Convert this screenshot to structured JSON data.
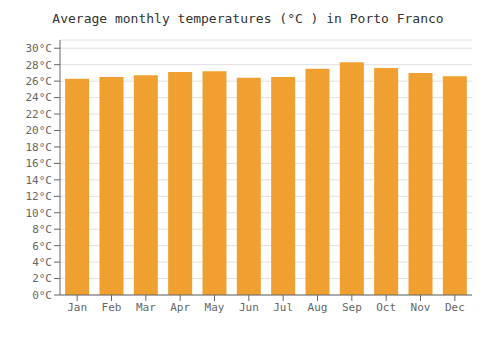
{
  "chart_data": {
    "type": "bar",
    "title": "Average monthly temperatures (°C ) in Porto Franco",
    "categories": [
      "Jan",
      "Feb",
      "Mar",
      "Apr",
      "May",
      "Jun",
      "Jul",
      "Aug",
      "Sep",
      "Oct",
      "Nov",
      "Dec"
    ],
    "values": [
      26.3,
      26.5,
      26.7,
      27.1,
      27.2,
      26.4,
      26.5,
      27.5,
      28.3,
      27.6,
      27.0,
      26.6
    ],
    "color": "#F0A030",
    "ylim": [
      0,
      31
    ],
    "yticks": [
      {
        "value": 0,
        "label": "0°C"
      },
      {
        "value": 2,
        "label": "2°C"
      },
      {
        "value": 4,
        "label": "4°C"
      },
      {
        "value": 6,
        "label": "6°C"
      },
      {
        "value": 8,
        "label": "8°C"
      },
      {
        "value": 10,
        "label": "10°C"
      },
      {
        "value": 12,
        "label": "12°C"
      },
      {
        "value": 14,
        "label": "14°C"
      },
      {
        "value": 16,
        "label": "16°C"
      },
      {
        "value": 18,
        "label": "18°C"
      },
      {
        "value": 20,
        "label": "20°C"
      },
      {
        "value": 22,
        "label": "22°C"
      },
      {
        "value": 24,
        "label": "24°C"
      },
      {
        "value": 26,
        "label": "26°C"
      },
      {
        "value": 28,
        "label": "28°C"
      },
      {
        "value": 30,
        "label": "30°C"
      }
    ],
    "grid": true
  }
}
